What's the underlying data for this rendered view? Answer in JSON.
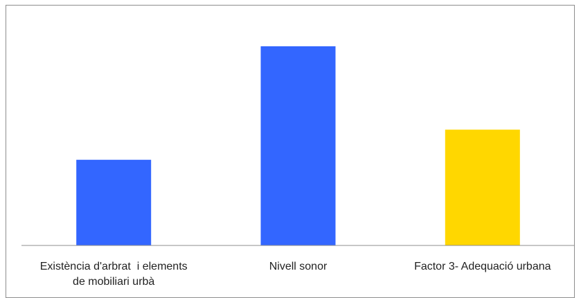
{
  "chart_data": {
    "type": "bar",
    "title": "",
    "xlabel": "",
    "ylabel": "",
    "ylim": [
      0,
      10
    ],
    "grid": false,
    "legend": "none",
    "categories": [
      [
        "Existència d'arbrat  i elements",
        "de mobiliari urbà"
      ],
      [
        "Nivell sonor"
      ],
      [
        "Factor 3- Adequació urbana"
      ]
    ],
    "values": [
      3.7,
      8.6,
      5.0
    ],
    "colors": [
      "#3366FF",
      "#3366FF",
      "#FFD700"
    ]
  }
}
